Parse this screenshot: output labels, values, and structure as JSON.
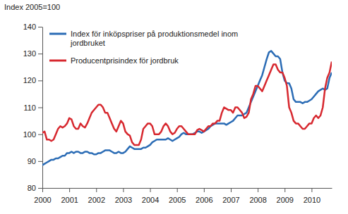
{
  "chart_data": {
    "type": "line",
    "ylabel": "Index 2005=100",
    "x": [
      2000,
      2000.083,
      2000.167,
      2000.25,
      2000.333,
      2000.417,
      2000.5,
      2000.583,
      2000.667,
      2000.75,
      2000.833,
      2000.917,
      2001,
      2001.083,
      2001.167,
      2001.25,
      2001.333,
      2001.417,
      2001.5,
      2001.583,
      2001.667,
      2001.75,
      2001.833,
      2001.917,
      2002,
      2002.083,
      2002.167,
      2002.25,
      2002.333,
      2002.417,
      2002.5,
      2002.583,
      2002.667,
      2002.75,
      2002.833,
      2002.917,
      2003,
      2003.083,
      2003.167,
      2003.25,
      2003.333,
      2003.417,
      2003.5,
      2003.583,
      2003.667,
      2003.75,
      2003.833,
      2003.917,
      2004,
      2004.083,
      2004.167,
      2004.25,
      2004.333,
      2004.417,
      2004.5,
      2004.583,
      2004.667,
      2004.75,
      2004.833,
      2004.917,
      2005,
      2005.083,
      2005.167,
      2005.25,
      2005.333,
      2005.417,
      2005.5,
      2005.583,
      2005.667,
      2005.75,
      2005.833,
      2005.917,
      2006,
      2006.083,
      2006.167,
      2006.25,
      2006.333,
      2006.417,
      2006.5,
      2006.583,
      2006.667,
      2006.75,
      2006.833,
      2006.917,
      2007,
      2007.083,
      2007.167,
      2007.25,
      2007.333,
      2007.417,
      2007.5,
      2007.583,
      2007.667,
      2007.75,
      2007.833,
      2007.917,
      2008,
      2008.083,
      2008.167,
      2008.25,
      2008.333,
      2008.417,
      2008.5,
      2008.583,
      2008.667,
      2008.75,
      2008.833,
      2008.917,
      2009,
      2009.083,
      2009.167,
      2009.25,
      2009.333,
      2009.417,
      2009.5,
      2009.583,
      2009.667,
      2009.75,
      2009.833,
      2009.917,
      2010,
      2010.083,
      2010.167,
      2010.25,
      2010.333,
      2010.417,
      2010.5,
      2010.583,
      2010.667,
      2010.75
    ],
    "series": [
      {
        "name": "Index för inköpspriser på produktionsmedel inom jordbruket",
        "color": "#2b6cb5",
        "values": [
          88.5,
          89,
          89.5,
          90,
          90.5,
          90.5,
          91,
          91,
          91.5,
          92,
          92,
          93,
          93,
          93.5,
          93,
          93.5,
          93.5,
          93,
          93,
          93.5,
          93.5,
          93,
          93,
          92.5,
          92.5,
          93,
          93,
          93.5,
          94,
          94,
          94,
          93.5,
          93,
          93,
          93.5,
          93,
          93,
          93.5,
          94.5,
          95.5,
          95,
          94.5,
          94.5,
          94.5,
          94.5,
          95,
          95,
          95.5,
          96,
          97,
          97.5,
          98,
          98,
          98,
          98,
          98,
          98.5,
          98,
          97.5,
          98,
          98.5,
          99,
          100,
          100.5,
          100,
          100,
          100,
          100,
          100.5,
          101,
          101,
          100.5,
          101,
          101.5,
          102,
          103,
          103.5,
          104,
          104,
          104,
          104,
          104,
          103.5,
          104,
          104.5,
          105,
          106,
          107,
          107,
          107,
          107.5,
          108,
          110,
          112,
          114,
          116,
          118,
          120,
          122,
          125,
          128,
          130.5,
          131,
          130,
          129,
          129,
          128,
          123,
          120,
          119,
          119,
          117,
          113,
          112,
          112,
          112,
          111.5,
          112,
          112,
          112.5,
          113,
          114,
          115,
          116,
          116.5,
          117,
          116.5,
          117,
          121,
          123
        ]
      },
      {
        "name": "Producentprisindex för jordbruk",
        "color": "#d7282f",
        "values": [
          100.5,
          101,
          98,
          98,
          97.5,
          98,
          100,
          102,
          103,
          102.5,
          103,
          104,
          106,
          105.5,
          103,
          102,
          102,
          104,
          103,
          102.5,
          104,
          106,
          108,
          109,
          110,
          111,
          111,
          110,
          108,
          108,
          106,
          104,
          102,
          101,
          103,
          105,
          104,
          101,
          100,
          99.5,
          97,
          96,
          96,
          96,
          98,
          102,
          103,
          104,
          104,
          103,
          100,
          100,
          100,
          101,
          103,
          104,
          103,
          101,
          100,
          100.5,
          102,
          103,
          103,
          102,
          101,
          100,
          100,
          100,
          100,
          101.5,
          102,
          101.5,
          101,
          102,
          103,
          103,
          104,
          104,
          105,
          105,
          108,
          110,
          109.5,
          109,
          109,
          108,
          110,
          110,
          109,
          108,
          106,
          106.5,
          108,
          113,
          115,
          118,
          118,
          117,
          116,
          118,
          120,
          122,
          124,
          126,
          126,
          124,
          123,
          123,
          121,
          118,
          110,
          108,
          105,
          104,
          104,
          103,
          102,
          102,
          103,
          104,
          104,
          106,
          107,
          106,
          107,
          110,
          117,
          121,
          123,
          127
        ]
      }
    ],
    "xlim": [
      2000,
      2010.75
    ],
    "xticks": [
      2000,
      2001,
      2002,
      2003,
      2004,
      2005,
      2006,
      2007,
      2008,
      2009,
      2010
    ],
    "ylim": [
      80,
      140
    ],
    "yticks": [
      80,
      90,
      100,
      110,
      120,
      130,
      140
    ],
    "grid": false,
    "legend": "top-left"
  }
}
